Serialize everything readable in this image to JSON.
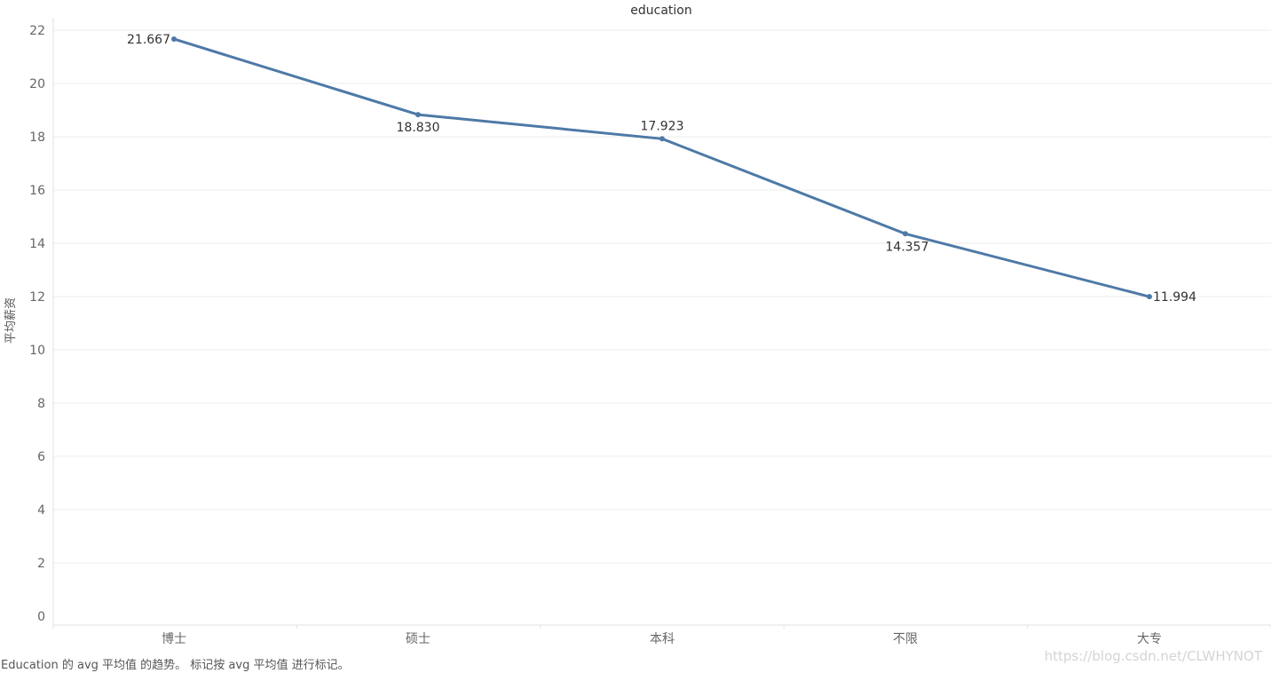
{
  "chart_data": {
    "type": "line",
    "title": "education",
    "xlabel": "",
    "ylabel": "平均薪资",
    "categories": [
      "博士",
      "硕士",
      "本科",
      "不限",
      "大专"
    ],
    "series": [
      {
        "values": [
          21.667,
          18.83,
          17.923,
          14.357,
          11.994
        ],
        "labels": [
          "21.667",
          "18.830",
          "17.923",
          "14.357",
          "11.994"
        ]
      }
    ],
    "ylim": [
      0,
      22
    ],
    "yticks": [
      "0",
      "2",
      "4",
      "6",
      "8",
      "10",
      "12",
      "14",
      "16",
      "18",
      "20",
      "22"
    ],
    "grid": true,
    "legend": "none",
    "line_color": "#4e79a7",
    "gridline_color": "#ececec"
  },
  "caption": "Education 的 avg 平均值 的趋势。 标记按 avg 平均值 进行标记。",
  "watermark": "https://blog.csdn.net/CLWHYNOT"
}
